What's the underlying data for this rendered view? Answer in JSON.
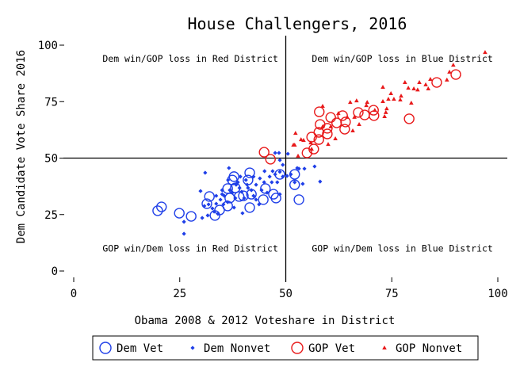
{
  "chart_data": {
    "type": "scatter",
    "title": "House Challengers, 2016",
    "xlabel": "Obama 2008 & 2012 Voteshare in District",
    "ylabel": "Dem Candidate Vote Share 2016",
    "xlim": [
      0,
      100
    ],
    "ylim": [
      0,
      100
    ],
    "xticks": [
      0,
      25,
      50,
      75,
      100
    ],
    "yticks": [
      0,
      25,
      50,
      75,
      100
    ],
    "grid": false,
    "reference_lines": {
      "x": 50,
      "y": 50
    },
    "legend_position": "bottom",
    "annotations": [
      {
        "text": "Dem win/GOP loss in Red District",
        "x": 27.5,
        "y": 94
      },
      {
        "text": "Dem win/GOP loss in Blue District",
        "x": 77.5,
        "y": 94
      },
      {
        "text": "GOP win/Dem loss in Red District",
        "x": 27.5,
        "y": 10
      },
      {
        "text": "GOP win/Dem loss in Blue District",
        "x": 77.5,
        "y": 10
      }
    ],
    "series": [
      {
        "name": "Dem Vet",
        "marker": "circle-open",
        "color": "#1f3fe8",
        "points": [
          [
            19.8,
            26.7
          ],
          [
            20.7,
            28.4
          ],
          [
            24.9,
            25.6
          ],
          [
            27.7,
            24.2
          ],
          [
            32,
            33
          ],
          [
            31.4,
            29.8
          ],
          [
            33.3,
            24.6
          ],
          [
            34.4,
            27
          ],
          [
            36.3,
            36.5
          ],
          [
            37.4,
            40.3
          ],
          [
            37.8,
            41.8
          ],
          [
            41.5,
            43.5
          ],
          [
            41.5,
            28.1
          ],
          [
            40,
            33.3
          ],
          [
            39,
            33
          ],
          [
            38.1,
            36.8
          ],
          [
            41.1,
            40.3
          ],
          [
            41.9,
            34
          ],
          [
            44.7,
            31.6
          ],
          [
            45.2,
            36.5
          ],
          [
            47.1,
            34
          ],
          [
            47.7,
            32.3
          ],
          [
            48.6,
            42.8
          ],
          [
            52.1,
            42.8
          ],
          [
            52.1,
            38.2
          ],
          [
            53.1,
            31.6
          ],
          [
            36.8,
            32.3
          ],
          [
            36.3,
            28.8
          ]
        ]
      },
      {
        "name": "Dem Nonvet",
        "marker": "diamond",
        "color": "#1f3fe8",
        "points": [
          [
            31,
            43.5
          ],
          [
            36.6,
            45.6
          ],
          [
            26,
            21.8
          ],
          [
            26,
            16.5
          ],
          [
            29.9,
            35.4
          ],
          [
            30.3,
            23.5
          ],
          [
            31.6,
            24.6
          ],
          [
            35,
            35.8
          ],
          [
            39.8,
            25.6
          ],
          [
            37.8,
            28.1
          ],
          [
            43.7,
            29.5
          ],
          [
            45,
            44.2
          ],
          [
            46.9,
            44.2
          ],
          [
            48.6,
            43.9
          ],
          [
            50.3,
            42.1
          ],
          [
            52.7,
            45.6
          ],
          [
            54.4,
            45.3
          ],
          [
            56.8,
            46.3
          ],
          [
            58.1,
            39.6
          ],
          [
            54,
            38.6
          ],
          [
            47.5,
            52.3
          ],
          [
            48.4,
            52.3
          ],
          [
            50.5,
            51.9
          ],
          [
            48.6,
            49.1
          ],
          [
            49.3,
            47
          ],
          [
            44.9,
            39.3
          ],
          [
            43,
            38.2
          ],
          [
            45.6,
            34.7
          ],
          [
            48.6,
            34
          ],
          [
            41.1,
            36.8
          ],
          [
            40.6,
            40.3
          ],
          [
            39.3,
            41.8
          ],
          [
            38.3,
            38.2
          ],
          [
            36.8,
            35.8
          ],
          [
            35.5,
            33.3
          ],
          [
            34.6,
            31.6
          ],
          [
            33.6,
            29.8
          ],
          [
            32.7,
            27.7
          ],
          [
            35.3,
            29.5
          ],
          [
            38.1,
            32.3
          ],
          [
            42.4,
            33.3
          ],
          [
            42.4,
            41.8
          ],
          [
            43.9,
            41
          ],
          [
            46.2,
            41.8
          ],
          [
            46.7,
            39.3
          ],
          [
            48,
            39.3
          ],
          [
            41.9,
            35.8
          ],
          [
            39.6,
            35.1
          ],
          [
            40.2,
            32.3
          ],
          [
            43,
            31.6
          ],
          [
            31.8,
            29.5
          ],
          [
            30.8,
            28.8
          ],
          [
            37.4,
            34.7
          ],
          [
            38.7,
            39.3
          ],
          [
            44.3,
            35.8
          ],
          [
            47.5,
            42.8
          ],
          [
            49.3,
            41.8
          ],
          [
            51.2,
            42.8
          ],
          [
            52.1,
            39.3
          ],
          [
            53.1,
            45.3
          ],
          [
            36.4,
            40.3
          ],
          [
            35,
            34
          ],
          [
            33.6,
            33.3
          ],
          [
            36.3,
            30.5
          ],
          [
            39.1,
            36.8
          ],
          [
            40.9,
            38.2
          ],
          [
            34,
            25.3
          ],
          [
            33.1,
            26.3
          ]
        ]
      },
      {
        "name": "GOP Vet",
        "marker": "circle-open",
        "color": "#e8191a",
        "points": [
          [
            90.1,
            87
          ],
          [
            85.6,
            83.5
          ],
          [
            79.1,
            67.4
          ],
          [
            70.7,
            71.2
          ],
          [
            70.8,
            68.8
          ],
          [
            67.1,
            70.2
          ],
          [
            68.6,
            69.1
          ],
          [
            63.4,
            68.8
          ],
          [
            64.1,
            66
          ],
          [
            63.9,
            62.8
          ],
          [
            60.6,
            68
          ],
          [
            57.9,
            70.5
          ],
          [
            58.1,
            64.9
          ],
          [
            59.8,
            63.2
          ],
          [
            59.8,
            60.7
          ],
          [
            57.8,
            61.4
          ],
          [
            57.8,
            58.2
          ],
          [
            56.1,
            59.3
          ],
          [
            56.6,
            54
          ],
          [
            55,
            52.3
          ],
          [
            44.9,
            52.6
          ],
          [
            46.4,
            49.5
          ],
          [
            62,
            65.6
          ]
        ]
      },
      {
        "name": "GOP Nonvet",
        "marker": "triangle",
        "color": "#e8191a",
        "points": [
          [
            97,
            96.8
          ],
          [
            89.5,
            91.2
          ],
          [
            88.6,
            88.1
          ],
          [
            88,
            84.6
          ],
          [
            84.1,
            84.9
          ],
          [
            81.5,
            83.5
          ],
          [
            78.1,
            83.5
          ],
          [
            83,
            82.5
          ],
          [
            78.9,
            81
          ],
          [
            80.2,
            80.7
          ],
          [
            81.1,
            80.2
          ],
          [
            83.6,
            80.7
          ],
          [
            72.9,
            81.4
          ],
          [
            74.8,
            78.6
          ],
          [
            77.2,
            77.5
          ],
          [
            74.2,
            76.1
          ],
          [
            75.5,
            76.1
          ],
          [
            77,
            75.8
          ],
          [
            72.9,
            75.1
          ],
          [
            79.6,
            74.4
          ],
          [
            73.8,
            71.9
          ],
          [
            73.6,
            70.2
          ],
          [
            73.3,
            68.4
          ],
          [
            65.2,
            74.7
          ],
          [
            66.7,
            75.4
          ],
          [
            69.2,
            74.7
          ],
          [
            58.7,
            73
          ],
          [
            71,
            71.2
          ],
          [
            67.3,
            64.9
          ],
          [
            65.8,
            62.1
          ],
          [
            61.7,
            58.6
          ],
          [
            60,
            56.1
          ],
          [
            52.3,
            61
          ],
          [
            53.6,
            58.2
          ],
          [
            54.2,
            57.9
          ],
          [
            51.8,
            55.8
          ],
          [
            52.1,
            55.8
          ],
          [
            55.9,
            56.8
          ],
          [
            56.1,
            54
          ],
          [
            52.9,
            50.9
          ],
          [
            62.4,
            69.8
          ],
          [
            64.5,
            68.1
          ],
          [
            66.2,
            68.1
          ],
          [
            69,
            73.3
          ],
          [
            58.7,
            63.9
          ],
          [
            60.6,
            63.9
          ]
        ]
      }
    ]
  }
}
